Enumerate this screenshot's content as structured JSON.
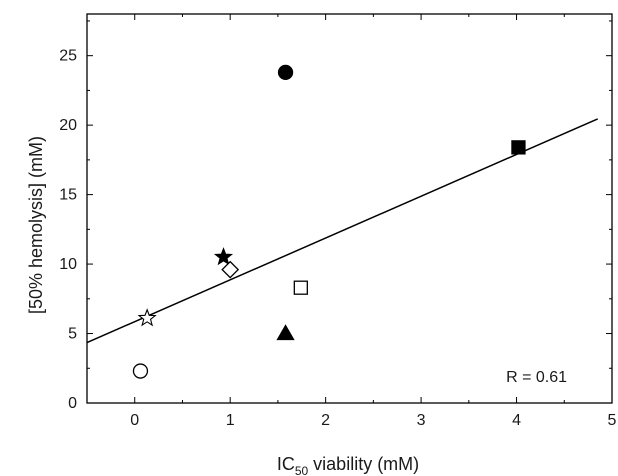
{
  "chart_data": {
    "type": "scatter",
    "title": "",
    "xlabel": {
      "main": "IC",
      "sub": "50",
      "rest": " viability (mM)"
    },
    "ylabel": "[50% hemolysis] (mM)",
    "xlim": [
      -0.5,
      5
    ],
    "ylim": [
      0,
      28
    ],
    "x_ticks": [
      0,
      1,
      2,
      3,
      4,
      5
    ],
    "x_tick_labels": [
      "0",
      "1",
      "2",
      "3",
      "4",
      "5"
    ],
    "y_ticks": [
      0,
      5,
      10,
      15,
      20,
      25
    ],
    "y_tick_labels": [
      "0",
      "5",
      "10",
      "15",
      "20",
      "25"
    ],
    "grid": false,
    "legend": "none",
    "points": [
      {
        "x": 1.58,
        "y": 23.8,
        "marker": "filled-circle"
      },
      {
        "x": 4.02,
        "y": 18.4,
        "marker": "filled-square"
      },
      {
        "x": 0.93,
        "y": 10.5,
        "marker": "filled-star"
      },
      {
        "x": 1.0,
        "y": 9.6,
        "marker": "open-diamond"
      },
      {
        "x": 1.74,
        "y": 8.3,
        "marker": "open-square"
      },
      {
        "x": 0.13,
        "y": 6.1,
        "marker": "open-star"
      },
      {
        "x": 1.58,
        "y": 5.0,
        "marker": "filled-triangle"
      },
      {
        "x": 0.06,
        "y": 2.3,
        "marker": "open-circle"
      }
    ],
    "fit_line": {
      "x": [
        -0.5,
        4.85
      ],
      "y": [
        4.35,
        20.45
      ]
    },
    "annotation": "R = 0.61",
    "colors": {
      "marker": "#000000",
      "line": "#000000",
      "axis": "#000000"
    }
  }
}
